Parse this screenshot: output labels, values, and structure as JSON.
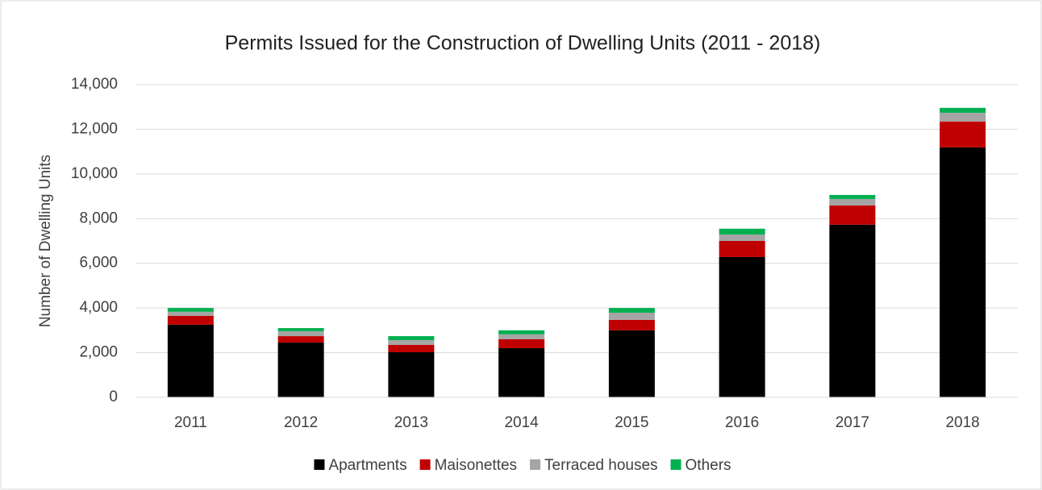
{
  "chart_data": {
    "type": "stacked_bar",
    "title": "Permits Issued for the Construction of Dwelling Units (2011 - 2018)",
    "ylabel": "Number of Dwelling Units",
    "categories": [
      "2011",
      "2012",
      "2013",
      "2014",
      "2015",
      "2016",
      "2017",
      "2018"
    ],
    "series": [
      {
        "name": "Apartments",
        "color": "#000000",
        "values": [
          3250,
          2450,
          2020,
          2200,
          3000,
          6280,
          7730,
          11190
        ]
      },
      {
        "name": "Maisonettes",
        "color": "#c00000",
        "values": [
          400,
          290,
          330,
          400,
          470,
          720,
          860,
          1160
        ]
      },
      {
        "name": "Terraced houses",
        "color": "#a5a5a5",
        "values": [
          180,
          220,
          210,
          220,
          320,
          290,
          290,
          390
        ]
      },
      {
        "name": "Others",
        "color": "#00b050",
        "values": [
          170,
          140,
          180,
          180,
          210,
          260,
          180,
          220
        ]
      }
    ],
    "ylim": [
      0,
      14000
    ],
    "yticks": [
      0,
      {
        "value": 2000,
        "label": "2,000"
      },
      {
        "value": 4000,
        "label": "4,000"
      },
      {
        "value": 6000,
        "label": "6,000"
      },
      {
        "value": 8000,
        "label": "8,000"
      },
      {
        "value": 10000,
        "label": "10,000"
      },
      {
        "value": 12000,
        "label": "12,000"
      },
      {
        "value": 14000,
        "label": "14,000"
      }
    ],
    "grid": true,
    "legend": "bottom"
  }
}
